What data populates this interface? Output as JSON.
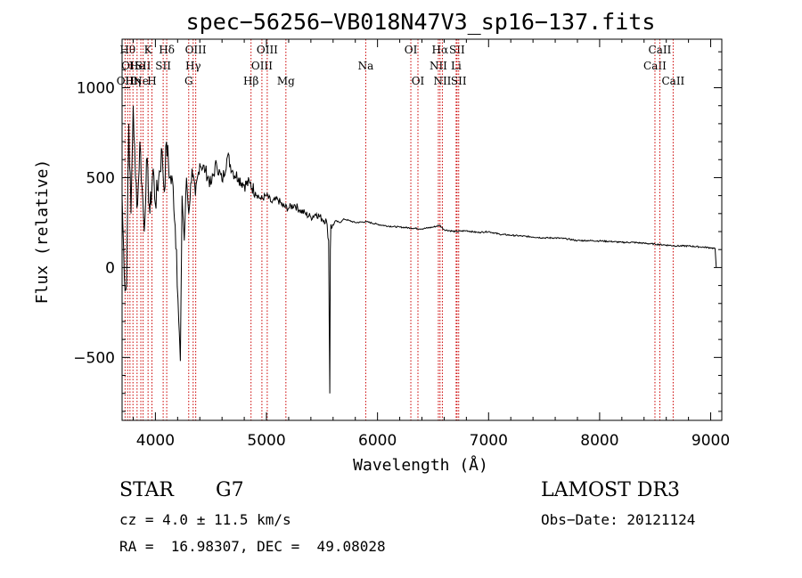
{
  "chart_data": {
    "type": "line",
    "title": "spec−56256−VB018N47V3_sp16−137.fits",
    "xlabel": "Wavelength (Å)",
    "ylabel": "Flux (relative)",
    "xlim": [
      3700,
      9100
    ],
    "ylim": [
      -850,
      1270
    ],
    "xticks": [
      4000,
      5000,
      6000,
      7000,
      8000,
      9000
    ],
    "xtick_labels": [
      "4000",
      "5000",
      "6000",
      "7000",
      "8000",
      "9000"
    ],
    "yticks": [
      -500,
      0,
      500,
      1000
    ],
    "ytick_labels": [
      "−500",
      "0",
      "500",
      "1000"
    ],
    "series": [
      {
        "name": "flux",
        "x": [
          3700,
          3720,
          3740,
          3760,
          3780,
          3800,
          3820,
          3840,
          3860,
          3880,
          3900,
          3920,
          3950,
          3980,
          4000,
          4030,
          4060,
          4080,
          4100,
          4130,
          4160,
          4190,
          4210,
          4225,
          4240,
          4260,
          4280,
          4300,
          4330,
          4360,
          4400,
          4450,
          4500,
          4550,
          4600,
          4650,
          4700,
          4750,
          4800,
          4850,
          4900,
          4950,
          5000,
          5050,
          5100,
          5150,
          5200,
          5250,
          5300,
          5350,
          5400,
          5450,
          5500,
          5540,
          5560,
          5570,
          5575,
          5580,
          5590,
          5620,
          5660,
          5700,
          5750,
          5800,
          5900,
          6000,
          6100,
          6200,
          6300,
          6400,
          6500,
          6560,
          6600,
          6700,
          6800,
          6900,
          7000,
          7100,
          7200,
          7300,
          7400,
          7500,
          7600,
          7700,
          7800,
          7900,
          8000,
          8100,
          8200,
          8300,
          8400,
          8500,
          8600,
          8700,
          8800,
          8900,
          9000,
          9040,
          9050
        ],
        "y": [
          400,
          -50,
          -100,
          800,
          300,
          900,
          500,
          350,
          700,
          450,
          200,
          600,
          300,
          550,
          350,
          500,
          650,
          420,
          700,
          500,
          450,
          100,
          -300,
          -520,
          400,
          150,
          500,
          300,
          550,
          400,
          580,
          540,
          460,
          580,
          480,
          620,
          530,
          500,
          460,
          470,
          420,
          380,
          400,
          360,
          380,
          340,
          330,
          350,
          320,
          300,
          280,
          300,
          270,
          260,
          150,
          -700,
          100,
          240,
          220,
          260,
          250,
          270,
          260,
          250,
          255,
          240,
          230,
          225,
          220,
          215,
          225,
          235,
          210,
          200,
          205,
          195,
          200,
          185,
          180,
          175,
          170,
          165,
          165,
          160,
          150,
          150,
          148,
          145,
          140,
          140,
          135,
          130,
          125,
          120,
          120,
          115,
          110,
          105,
          0
        ]
      }
    ],
    "lines": [
      {
        "wave": 3727,
        "label": "OII",
        "row": 2
      },
      {
        "wave": 3750,
        "label": "Hθ",
        "row": 0
      },
      {
        "wave": 3771,
        "label": "OII",
        "row": 1
      },
      {
        "wave": 3798,
        "label": "Hη",
        "row": 2
      },
      {
        "wave": 3835,
        "label": "He",
        "row": 1
      },
      {
        "wave": 3869,
        "label": "Ne",
        "row": 2
      },
      {
        "wave": 3889,
        "label": "SII",
        "row": 1
      },
      {
        "wave": 3934,
        "label": "K",
        "row": 0
      },
      {
        "wave": 3969,
        "label": "H",
        "row": 2
      },
      {
        "wave": 4070,
        "label": "SII",
        "row": 1
      },
      {
        "wave": 4102,
        "label": "Hδ",
        "row": 0
      },
      {
        "wave": 4300,
        "label": "G",
        "row": 2
      },
      {
        "wave": 4340,
        "label": "Hγ",
        "row": 1
      },
      {
        "wave": 4363,
        "label": "OIII",
        "row": 0
      },
      {
        "wave": 4861,
        "label": "Hβ",
        "row": 2
      },
      {
        "wave": 4959,
        "label": "OIII",
        "row": 1
      },
      {
        "wave": 5007,
        "label": "OIII",
        "row": 0
      },
      {
        "wave": 5175,
        "label": "Mg",
        "row": 2
      },
      {
        "wave": 5894,
        "label": "Na",
        "row": 1
      },
      {
        "wave": 6300,
        "label": "OI",
        "row": 0
      },
      {
        "wave": 6364,
        "label": "OI",
        "row": 2
      },
      {
        "wave": 6548,
        "label": "NII",
        "row": 1
      },
      {
        "wave": 6563,
        "label": "Hα",
        "row": 0
      },
      {
        "wave": 6584,
        "label": "NII",
        "row": 2
      },
      {
        "wave": 6708,
        "label": "Li",
        "row": 1
      },
      {
        "wave": 6716,
        "label": "SII",
        "row": 0
      },
      {
        "wave": 6731,
        "label": "SII",
        "row": 2
      },
      {
        "wave": 8498,
        "label": "CaII",
        "row": 1
      },
      {
        "wave": 8542,
        "label": "CaII",
        "row": 0
      },
      {
        "wave": 8662,
        "label": "CaII",
        "row": 2
      }
    ],
    "line_color": "#cc0000"
  },
  "info": {
    "class": "STAR",
    "subclass": "G7",
    "survey": "LAMOST DR3",
    "cz": "cz = 4.0 ± 11.5 km/s",
    "obs_date": "Obs−Date: 20121124",
    "coords": "RA =  16.98307, DEC =  49.08028"
  }
}
